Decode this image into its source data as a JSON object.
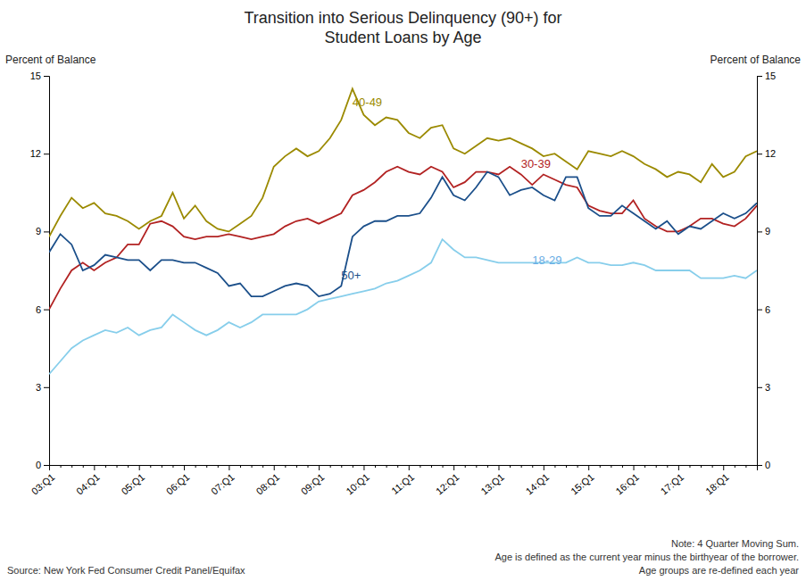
{
  "chart_data": {
    "type": "line",
    "title": "Transition into Serious Delinquency (90+) for\nStudent Loans by Age",
    "ylabel": "Percent of Balance",
    "y2label": "Percent of Balance",
    "source": "Source: New York Fed Consumer Credit Panel/Equifax",
    "notes": [
      "Note: 4 Quarter Moving Sum.",
      "Age is defined as the current year minus the birthyear of the borrower.",
      "Age groups are re-defined each year"
    ],
    "categories": [
      "03:Q1",
      null,
      null,
      null,
      "04:Q1",
      null,
      null,
      null,
      "05:Q1",
      null,
      null,
      null,
      "06:Q1",
      null,
      null,
      null,
      "07:Q1",
      null,
      null,
      null,
      "08:Q1",
      null,
      null,
      null,
      "09:Q1",
      null,
      null,
      null,
      "10:Q1",
      null,
      null,
      null,
      "11:Q1",
      null,
      null,
      null,
      "12:Q1",
      null,
      null,
      null,
      "13:Q1",
      null,
      null,
      null,
      "14:Q1",
      null,
      null,
      null,
      "15:Q1",
      null,
      null,
      null,
      "16:Q1",
      null,
      null,
      null,
      "17:Q1",
      null,
      null,
      null,
      "18:Q1",
      null,
      null,
      null
    ],
    "ylim": [
      0,
      15
    ],
    "yticks": [
      0,
      3,
      6,
      9,
      12,
      15
    ],
    "y2lim": [
      0,
      15
    ],
    "y2ticks": [
      0,
      3,
      6,
      9,
      12,
      15
    ],
    "grid": false,
    "series": [
      {
        "name": "18-29",
        "color": "#87CEEB",
        "values": [
          3.5,
          4.0,
          4.5,
          4.8,
          5.0,
          5.2,
          5.1,
          5.3,
          5.0,
          5.2,
          5.3,
          5.8,
          5.5,
          5.2,
          5.0,
          5.2,
          5.5,
          5.3,
          5.5,
          5.8,
          5.8,
          5.8,
          5.8,
          6.0,
          6.3,
          6.4,
          6.5,
          6.6,
          6.7,
          6.8,
          7.0,
          7.1,
          7.3,
          7.5,
          7.8,
          8.7,
          8.3,
          8.0,
          8.0,
          7.9,
          7.8,
          7.8,
          7.8,
          7.8,
          7.8,
          7.8,
          7.8,
          8.0,
          7.8,
          7.8,
          7.7,
          7.7,
          7.8,
          7.7,
          7.5,
          7.5,
          7.5,
          7.5,
          7.2,
          7.2,
          7.2,
          7.3,
          7.2,
          7.5
        ]
      },
      {
        "name": "40-49",
        "color": "#9B8A00",
        "values": [
          8.8,
          9.6,
          10.3,
          9.9,
          10.1,
          9.7,
          9.6,
          9.4,
          9.1,
          9.4,
          9.6,
          10.5,
          9.5,
          10.0,
          9.4,
          9.1,
          9.0,
          9.3,
          9.6,
          10.3,
          11.5,
          11.9,
          12.2,
          11.9,
          12.1,
          12.6,
          13.3,
          14.5,
          13.5,
          13.1,
          13.4,
          13.3,
          12.8,
          12.6,
          13.0,
          13.1,
          12.2,
          12.0,
          12.3,
          12.6,
          12.5,
          12.6,
          12.4,
          12.2,
          11.9,
          12.0,
          11.7,
          11.4,
          12.1,
          12.0,
          11.9,
          12.1,
          11.9,
          11.6,
          11.4,
          11.1,
          11.3,
          11.2,
          10.9,
          11.6,
          11.1,
          11.3,
          11.9,
          12.1
        ]
      },
      {
        "name": "30-39",
        "color": "#B22222",
        "values": [
          6.0,
          6.8,
          7.5,
          7.8,
          7.5,
          7.8,
          8.0,
          8.5,
          8.5,
          9.3,
          9.4,
          9.2,
          8.8,
          8.7,
          8.8,
          8.8,
          8.9,
          8.8,
          8.7,
          8.8,
          8.9,
          9.2,
          9.4,
          9.5,
          9.3,
          9.5,
          9.7,
          10.4,
          10.6,
          10.9,
          11.3,
          11.5,
          11.3,
          11.2,
          11.5,
          11.3,
          10.7,
          10.9,
          11.3,
          11.3,
          11.2,
          11.5,
          11.2,
          10.8,
          11.2,
          11.0,
          10.8,
          10.7,
          10.0,
          9.8,
          9.7,
          9.7,
          10.2,
          9.5,
          9.2,
          9.0,
          9.0,
          9.2,
          9.5,
          9.5,
          9.3,
          9.2,
          9.5,
          10.0
        ]
      },
      {
        "name": "50+",
        "color": "#1B4F8A",
        "values": [
          8.2,
          8.9,
          8.5,
          7.5,
          7.7,
          8.1,
          8.0,
          7.9,
          7.9,
          7.5,
          7.9,
          7.9,
          7.8,
          7.8,
          7.6,
          7.4,
          6.9,
          7.0,
          6.5,
          6.5,
          6.7,
          6.9,
          7.0,
          6.9,
          6.5,
          6.6,
          6.9,
          8.8,
          9.2,
          9.4,
          9.4,
          9.6,
          9.6,
          9.7,
          10.3,
          11.1,
          10.4,
          10.2,
          10.7,
          11.3,
          11.1,
          10.4,
          10.6,
          10.7,
          10.4,
          10.2,
          11.1,
          11.1,
          9.9,
          9.6,
          9.6,
          10.0,
          9.7,
          9.4,
          9.1,
          9.4,
          8.9,
          9.2,
          9.1,
          9.4,
          9.7,
          9.5,
          9.7,
          10.1
        ]
      }
    ],
    "annotations": [
      {
        "text": "40-49",
        "x": 27,
        "y": 14.0,
        "color": "#9B8A00"
      },
      {
        "text": "30-39",
        "x": 42,
        "y": 11.6,
        "color": "#B22222"
      },
      {
        "text": "50+",
        "x": 26,
        "y": 7.3,
        "color": "#1B4F8A"
      },
      {
        "text": "18-29",
        "x": 43,
        "y": 7.9,
        "color": "#6AADE4"
      }
    ]
  }
}
